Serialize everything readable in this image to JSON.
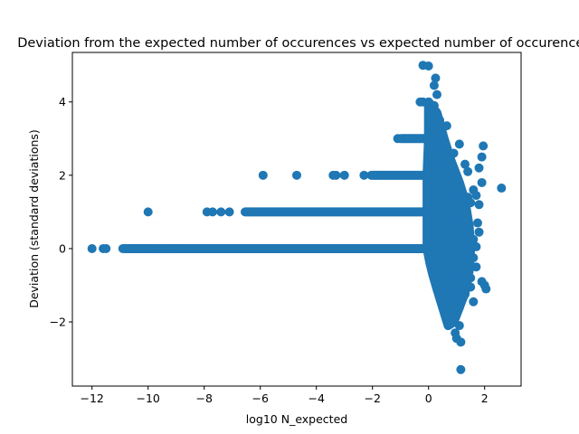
{
  "chart_data": {
    "type": "scatter",
    "title": "Deviation from the expected number of occurences vs expected number of occurences",
    "xlabel": "log10 N_expected",
    "ylabel": "Deviation (standard deviations)",
    "xlim": [
      -12.7,
      3.3
    ],
    "ylim": [
      -3.75,
      5.35
    ],
    "x_ticks": [
      -12,
      -10,
      -8,
      -6,
      -4,
      -2,
      0,
      2
    ],
    "y_ticks": [
      -2,
      0,
      2,
      4
    ],
    "x_tick_labels": [
      "−12",
      "−10",
      "−8",
      "−6",
      "−4",
      "−2",
      "0",
      "2"
    ],
    "y_tick_labels": [
      "−2",
      "0",
      "2",
      "4"
    ],
    "grid": false,
    "marker_color": "#1f77b4",
    "band_y0": {
      "x_start": -11.0,
      "x_end": 0.0,
      "y": 0
    },
    "band_y1": {
      "x_start": -6.7,
      "x_end": 0.0,
      "y": 1
    },
    "band_y2": {
      "x_start": -2.2,
      "x_end": 0.0,
      "y": 2
    },
    "band_y3": {
      "x_start": -1.1,
      "x_end": 0.05,
      "y": 3
    },
    "points": [
      {
        "x": -12.0,
        "y": 0
      },
      {
        "x": -11.6,
        "y": 0
      },
      {
        "x": -11.5,
        "y": 0
      },
      {
        "x": -10.9,
        "y": 0
      },
      {
        "x": -10.6,
        "y": 0
      },
      {
        "x": -10.3,
        "y": 0
      },
      {
        "x": -10.0,
        "y": 0
      },
      {
        "x": -9.6,
        "y": 0
      },
      {
        "x": -9.2,
        "y": 0
      },
      {
        "x": -8.9,
        "y": 0
      },
      {
        "x": -10.0,
        "y": 1
      },
      {
        "x": -7.9,
        "y": 1
      },
      {
        "x": -7.7,
        "y": 1
      },
      {
        "x": -7.4,
        "y": 1
      },
      {
        "x": -7.1,
        "y": 1
      },
      {
        "x": -5.9,
        "y": 2
      },
      {
        "x": -4.7,
        "y": 2
      },
      {
        "x": -3.4,
        "y": 2
      },
      {
        "x": -3.3,
        "y": 2
      },
      {
        "x": -3.0,
        "y": 2
      },
      {
        "x": -2.3,
        "y": 2
      },
      {
        "x": -1.1,
        "y": 3
      },
      {
        "x": -1.0,
        "y": 3
      },
      {
        "x": -0.3,
        "y": 4
      },
      {
        "x": -0.2,
        "y": 4
      },
      {
        "x": -0.2,
        "y": 5
      },
      {
        "x": 0.0,
        "y": 4.98
      },
      {
        "x": 0.25,
        "y": 4.65
      },
      {
        "x": 0.2,
        "y": 4.45
      },
      {
        "x": 0.3,
        "y": 4.2
      },
      {
        "x": 0.2,
        "y": 3.9
      },
      {
        "x": 0.1,
        "y": 3.7
      },
      {
        "x": 0.4,
        "y": 3.5
      },
      {
        "x": 0.65,
        "y": 3.35
      },
      {
        "x": 0.5,
        "y": 3.1
      },
      {
        "x": 1.1,
        "y": 2.85
      },
      {
        "x": 0.9,
        "y": 2.6
      },
      {
        "x": 1.95,
        "y": 2.8
      },
      {
        "x": 1.9,
        "y": 2.5
      },
      {
        "x": 1.3,
        "y": 2.3
      },
      {
        "x": 1.4,
        "y": 2.1
      },
      {
        "x": 1.8,
        "y": 2.2
      },
      {
        "x": 1.9,
        "y": 1.8
      },
      {
        "x": 1.6,
        "y": 1.6
      },
      {
        "x": 1.7,
        "y": 1.45
      },
      {
        "x": 1.4,
        "y": 1.4
      },
      {
        "x": 1.5,
        "y": 1.25
      },
      {
        "x": 2.6,
        "y": 1.65
      },
      {
        "x": 1.8,
        "y": 1.2
      },
      {
        "x": 1.75,
        "y": 0.7
      },
      {
        "x": 1.8,
        "y": 0.45
      },
      {
        "x": 1.6,
        "y": 0.25
      },
      {
        "x": 1.7,
        "y": 0.05
      },
      {
        "x": 1.6,
        "y": -0.25
      },
      {
        "x": 1.7,
        "y": -0.5
      },
      {
        "x": 1.5,
        "y": -0.8
      },
      {
        "x": 1.9,
        "y": -0.9
      },
      {
        "x": 2.0,
        "y": -1.0
      },
      {
        "x": 2.05,
        "y": -1.1
      },
      {
        "x": 1.5,
        "y": -1.05
      },
      {
        "x": 1.3,
        "y": -1.25
      },
      {
        "x": 1.6,
        "y": -1.45
      },
      {
        "x": 1.1,
        "y": -1.6
      },
      {
        "x": 0.9,
        "y": -1.85
      },
      {
        "x": 0.8,
        "y": -2.05
      },
      {
        "x": 1.1,
        "y": -2.1
      },
      {
        "x": 0.95,
        "y": -2.3
      },
      {
        "x": 1.0,
        "y": -2.45
      },
      {
        "x": 1.15,
        "y": -2.55
      },
      {
        "x": 1.15,
        "y": -3.3
      }
    ],
    "lobe_outline": [
      [
        0.0,
        4.0
      ],
      [
        0.3,
        3.7
      ],
      [
        0.55,
        3.0
      ],
      [
        0.8,
        2.4
      ],
      [
        1.1,
        1.8
      ],
      [
        1.3,
        1.3
      ],
      [
        1.45,
        0.6
      ],
      [
        1.5,
        0.0
      ],
      [
        1.45,
        -0.6
      ],
      [
        1.3,
        -1.2
      ],
      [
        1.1,
        -1.6
      ],
      [
        0.9,
        -2.0
      ],
      [
        0.7,
        -2.1
      ],
      [
        0.5,
        -1.6
      ],
      [
        0.3,
        -1.1
      ],
      [
        0.15,
        -0.7
      ],
      [
        0.05,
        -0.4
      ],
      [
        -0.05,
        0.0
      ],
      [
        -0.05,
        1.0
      ],
      [
        -0.05,
        2.0
      ],
      [
        0.0,
        3.0
      ]
    ]
  }
}
